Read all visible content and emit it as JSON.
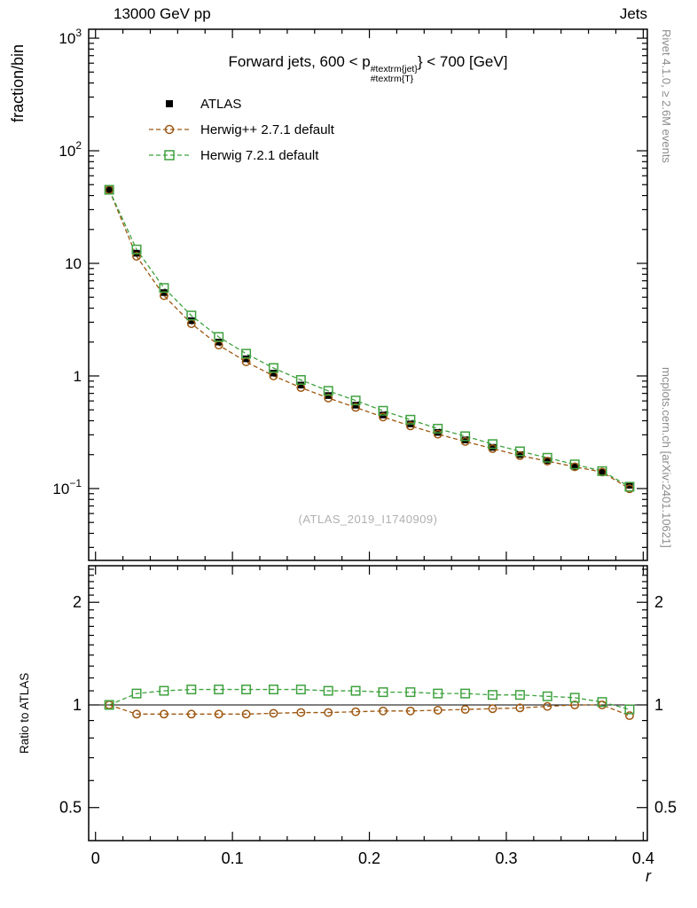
{
  "header": {
    "left": "13000 GeV pp",
    "right": "Jets"
  },
  "side_texts": {
    "top_right": "Rivet 4.1.0, ≥ 2.6M events",
    "bottom_right": "mcplots.cern.ch [arXiv:2401.10621]"
  },
  "watermark": "(ATLAS_2019_I1740909)",
  "chart_data": {
    "type": "line",
    "title": {
      "prefix": "Forward jets, 600 < p",
      "sub": "#textrm{T}",
      "sup": "#textrm{jet}",
      "suffix": "} < 700 [GeV]"
    },
    "xlabel": "r",
    "ylabel_main": "fraction/bin",
    "ylabel_ratio": "Ratio to ATLAS",
    "x_axis": {
      "min": -0.005,
      "max": 0.403,
      "major_ticks": [
        0,
        0.1,
        0.2,
        0.3,
        0.4
      ],
      "labels": [
        "0",
        "0.1",
        "0.2",
        "0.3",
        "0.4"
      ],
      "minor_step": 0.02
    },
    "y_axis_main": {
      "scale": "log",
      "min": 0.023,
      "max": 1200,
      "ticks": [
        {
          "v": 1000,
          "base": "10",
          "exp": "3"
        },
        {
          "v": 100,
          "base": "10",
          "exp": "2"
        },
        {
          "v": 10,
          "base": "10",
          "exp": ""
        },
        {
          "v": 1,
          "base": "1",
          "exp": ""
        },
        {
          "v": 0.1,
          "base": "10",
          "exp": "−1"
        }
      ]
    },
    "y_axis_ratio": {
      "scale": "log",
      "min": 0.4,
      "max": 2.56,
      "reference": 1,
      "ticks": [
        {
          "v": 2,
          "label": "2"
        },
        {
          "v": 1,
          "label": "1"
        },
        {
          "v": 0.5,
          "label": "0.5"
        }
      ]
    },
    "x": [
      0.01,
      0.03,
      0.05,
      0.07,
      0.09,
      0.11,
      0.13,
      0.15,
      0.17,
      0.19,
      0.21,
      0.23,
      0.25,
      0.27,
      0.29,
      0.31,
      0.33,
      0.35,
      0.37,
      0.39
    ],
    "series": [
      {
        "name": "ATLAS",
        "label": "ATLAS",
        "marker": "filled-square",
        "color": "#000000",
        "line": "none",
        "values": [
          45,
          12.3,
          5.5,
          3.1,
          2.0,
          1.42,
          1.06,
          0.83,
          0.67,
          0.55,
          0.45,
          0.375,
          0.315,
          0.27,
          0.232,
          0.2,
          0.177,
          0.156,
          0.14,
          0.107
        ]
      },
      {
        "name": "herwigpp",
        "label": "Herwig++ 2.7.1 default",
        "marker": "open-circle",
        "color": "#9c5711",
        "line": "dashed",
        "ratio_to_atlas": [
          1.0,
          0.94,
          0.94,
          0.94,
          0.94,
          0.94,
          0.945,
          0.95,
          0.95,
          0.955,
          0.96,
          0.96,
          0.965,
          0.97,
          0.975,
          0.98,
          0.99,
          1.0,
          1.0,
          0.93
        ]
      },
      {
        "name": "herwig7",
        "label": "Herwig 7.2.1 default",
        "marker": "open-square",
        "color": "#3fa13f",
        "line": "dashed",
        "ratio_to_atlas": [
          1.0,
          1.08,
          1.1,
          1.11,
          1.11,
          1.11,
          1.11,
          1.11,
          1.1,
          1.1,
          1.09,
          1.09,
          1.08,
          1.08,
          1.07,
          1.07,
          1.06,
          1.05,
          1.02,
          0.97
        ]
      }
    ]
  }
}
